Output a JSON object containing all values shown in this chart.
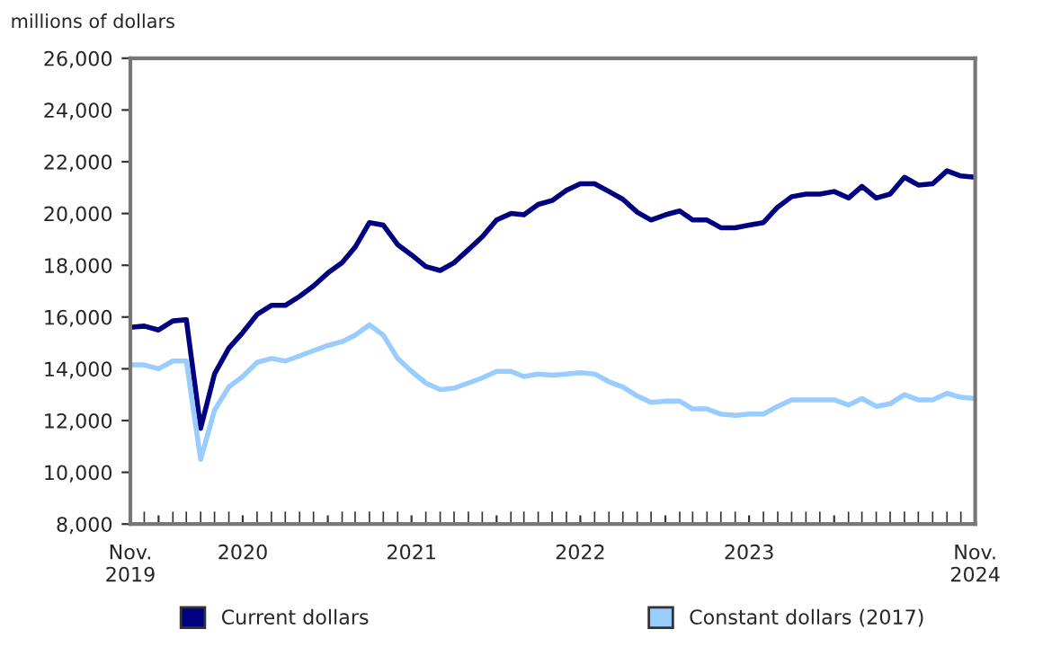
{
  "chart_data": {
    "type": "line",
    "ylabel": "millions of dollars",
    "x": [
      "2019-11",
      "2019-12",
      "2020-01",
      "2020-02",
      "2020-03",
      "2020-04",
      "2020-05",
      "2020-06",
      "2020-07",
      "2020-08",
      "2020-09",
      "2020-10",
      "2020-11",
      "2020-12",
      "2021-01",
      "2021-02",
      "2021-03",
      "2021-04",
      "2021-05",
      "2021-06",
      "2021-07",
      "2021-08",
      "2021-09",
      "2021-10",
      "2021-11",
      "2021-12",
      "2022-01",
      "2022-02",
      "2022-03",
      "2022-04",
      "2022-05",
      "2022-06",
      "2022-07",
      "2022-08",
      "2022-09",
      "2022-10",
      "2022-11",
      "2022-12",
      "2023-01",
      "2023-02",
      "2023-03",
      "2023-04",
      "2023-05",
      "2023-06",
      "2023-07",
      "2023-08",
      "2023-09",
      "2023-10",
      "2023-11",
      "2023-12",
      "2024-01",
      "2024-02",
      "2024-03",
      "2024-04",
      "2024-05",
      "2024-06",
      "2024-07",
      "2024-08",
      "2024-09",
      "2024-10",
      "2024-11"
    ],
    "series": [
      {
        "name": "Current dollars",
        "color": "#000080",
        "values": [
          15600,
          15650,
          15500,
          15850,
          15900,
          11700,
          13800,
          14800,
          15400,
          16100,
          16450,
          16450,
          16800,
          17200,
          17700,
          18100,
          18700,
          19650,
          19550,
          18800,
          18400,
          17950,
          17800,
          18100,
          18600,
          19100,
          19750,
          20000,
          19950,
          20350,
          20500,
          20900,
          21150,
          21150,
          20850,
          20550,
          20050,
          19750,
          19950,
          20100,
          19750,
          19750,
          19450,
          19450,
          19550,
          19650,
          20250,
          20650,
          20750,
          20750,
          20850,
          20600,
          21050,
          20600,
          20750,
          21400,
          21100,
          21150,
          21650,
          21450,
          21400
        ]
      },
      {
        "name": "Constant dollars (2017)",
        "color": "#99ccff",
        "values": [
          14150,
          14150,
          14000,
          14300,
          14300,
          10500,
          12400,
          13300,
          13700,
          14250,
          14400,
          14300,
          14500,
          14700,
          14900,
          15050,
          15300,
          15700,
          15300,
          14400,
          13900,
          13450,
          13200,
          13250,
          13450,
          13650,
          13900,
          13900,
          13700,
          13800,
          13750,
          13800,
          13850,
          13800,
          13500,
          13300,
          12950,
          12700,
          12750,
          12750,
          12450,
          12450,
          12250,
          12200,
          12250,
          12250,
          12550,
          12800,
          12800,
          12800,
          12800,
          12600,
          12850,
          12550,
          12650,
          13000,
          12800,
          12800,
          13050,
          12900,
          12850
        ]
      }
    ],
    "xlim": [
      "2019-11",
      "2024-11"
    ],
    "xticks": [
      {
        "value": "2019-11",
        "label": "Nov.\n2019"
      },
      {
        "value": "2020-01",
        "label": null
      },
      {
        "value": "2020-07",
        "label": "2020"
      },
      {
        "value": "2021-01",
        "label": null
      },
      {
        "value": "2021-07",
        "label": "2021"
      },
      {
        "value": "2022-01",
        "label": null
      },
      {
        "value": "2022-07",
        "label": "2022"
      },
      {
        "value": "2023-01",
        "label": null
      },
      {
        "value": "2023-07",
        "label": "2023"
      },
      {
        "value": "2024-01",
        "label": null
      },
      {
        "value": "2024-11",
        "label": "Nov.\n2024"
      }
    ],
    "ylim": [
      8000,
      26000
    ],
    "yticks": [
      {
        "value": 8000,
        "label": "8,000"
      },
      {
        "value": 10000,
        "label": "10,000"
      },
      {
        "value": 12000,
        "label": "12,000"
      },
      {
        "value": 14000,
        "label": "14,000"
      },
      {
        "value": 16000,
        "label": "16,000"
      },
      {
        "value": 18000,
        "label": "18,000"
      },
      {
        "value": 20000,
        "label": "20,000"
      },
      {
        "value": 22000,
        "label": "22,000"
      },
      {
        "value": 24000,
        "label": "24,000"
      },
      {
        "value": 26000,
        "label": "26,000"
      }
    ],
    "legend": "bottom",
    "marker": "none",
    "line_style": "solid"
  }
}
